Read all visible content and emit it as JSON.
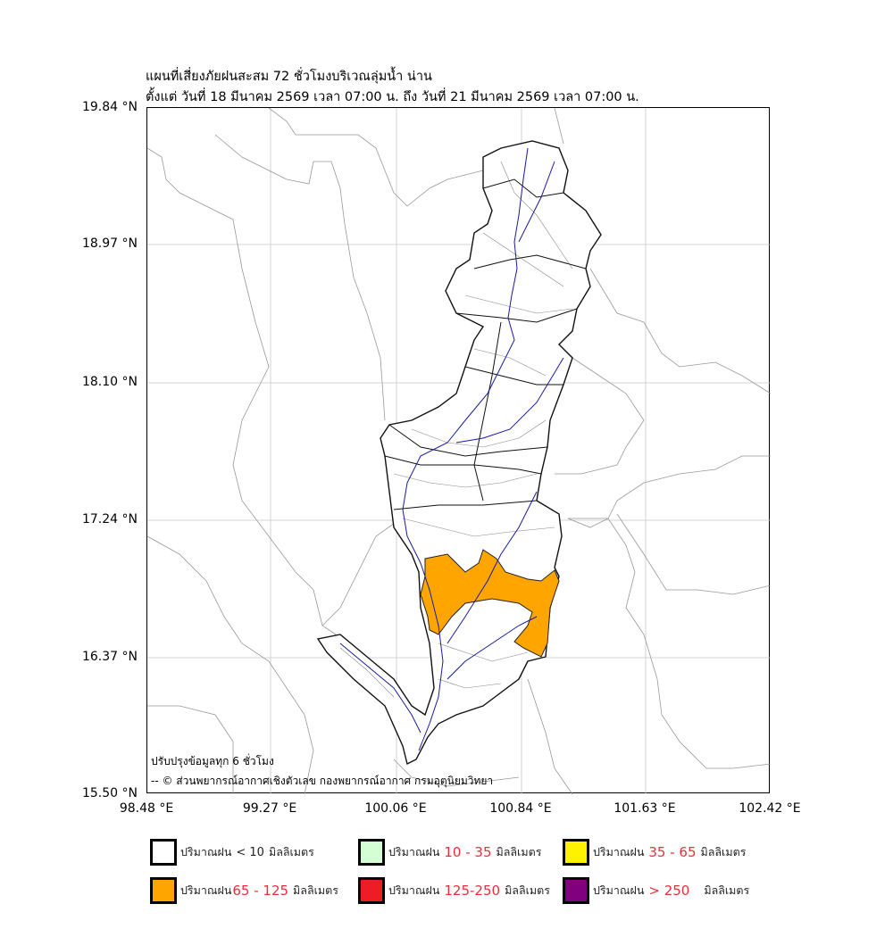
{
  "title": {
    "line1": "แผนที่เสี่ยงภัยฝนสะสม 72 ชั่วโมงบริเวณลุ่มน้ำ น่าน",
    "line2": "ตั้งแต่ วันที่ 18 มีนาคม 2569 เวลา 07:00 น. ถึง วันที่ 21 มีนาคม 2569 เวลา 07:00 น."
  },
  "axes": {
    "lat_ticks": [
      "19.84 °N",
      "18.97 °N",
      "18.10 °N",
      "17.24 °N",
      "16.37 °N",
      "15.50 °N"
    ],
    "lon_ticks": [
      "98.48 °E",
      "99.27 °E",
      "100.06 °E",
      "100.84 °E",
      "101.63 °E",
      "102.42 °E"
    ]
  },
  "notes": {
    "update": "ปรับปรุงข้อมูลทุก 6 ชั่วโมง",
    "credit": "-- © ส่วนพยากรณ์อากาศเชิงตัวเลข กองพยากรณ์อากาศ กรมอุตุนิยมวิทยา"
  },
  "legend": [
    {
      "prefix": "ปริมาณฝน",
      "range": "< 10",
      "unit": "มิลลิเมตร",
      "color": "#ffffff",
      "range_red": false
    },
    {
      "prefix": "ปริมาณฝน",
      "range": "10 - 35",
      "unit": "มิลลิเมตร",
      "color": "#d4ffd4",
      "range_red": true
    },
    {
      "prefix": "ปริมาณฝน",
      "range": "35 - 65",
      "unit": "มิลลิเมตร",
      "color": "#fff200",
      "range_red": true
    },
    {
      "prefix": "ปริมาณฝน",
      "range": "65 - 125",
      "unit": "มิลลิเมตร",
      "color": "#ffa500",
      "range_red": true
    },
    {
      "prefix": "ปริมาณฝน",
      "range": "125-250",
      "unit": "มิลลิเมตร",
      "color": "#ee1c25",
      "range_red": true
    },
    {
      "prefix": "ปริมาณฝน",
      "range": "> 250",
      "unit": "มิลลิเมตร",
      "color": "#800080",
      "range_red": true
    }
  ],
  "colors": {
    "river": "#1a1aa0",
    "boundary": "#999999",
    "risk_65_125": "#ffa500"
  }
}
